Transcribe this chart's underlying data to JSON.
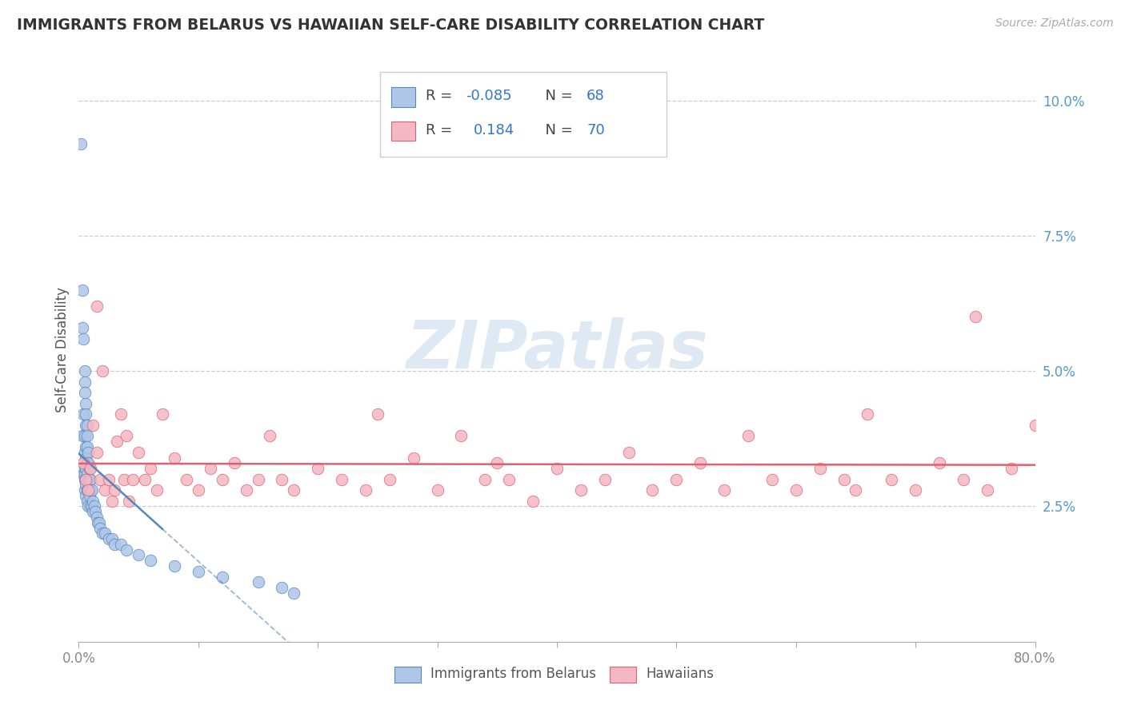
{
  "title": "IMMIGRANTS FROM BELARUS VS HAWAIIAN SELF-CARE DISABILITY CORRELATION CHART",
  "source": "Source: ZipAtlas.com",
  "ylabel": "Self-Care Disability",
  "ylabel_right_ticks": [
    "10.0%",
    "7.5%",
    "5.0%",
    "2.5%"
  ],
  "y_tick_values": [
    0.1,
    0.075,
    0.05,
    0.025
  ],
  "xlim": [
    0.0,
    0.8
  ],
  "ylim": [
    0.0,
    0.108
  ],
  "legend_label1": "Immigrants from Belarus",
  "legend_label2": "Hawaiians",
  "R1": -0.085,
  "N1": 68,
  "R2": 0.184,
  "N2": 70,
  "color_blue": "#aec6e8",
  "color_pink": "#f4b8c4",
  "color_line_blue": "#5588bb",
  "color_line_pink": "#e06070",
  "watermark_text": "ZIPatlas",
  "belarus_x": [
    0.002,
    0.003,
    0.003,
    0.003,
    0.004,
    0.004,
    0.004,
    0.005,
    0.005,
    0.005,
    0.005,
    0.005,
    0.005,
    0.005,
    0.005,
    0.005,
    0.006,
    0.006,
    0.006,
    0.006,
    0.006,
    0.006,
    0.006,
    0.006,
    0.006,
    0.007,
    0.007,
    0.007,
    0.007,
    0.007,
    0.007,
    0.007,
    0.008,
    0.008,
    0.008,
    0.008,
    0.008,
    0.009,
    0.009,
    0.009,
    0.01,
    0.01,
    0.01,
    0.011,
    0.011,
    0.012,
    0.012,
    0.013,
    0.014,
    0.015,
    0.016,
    0.017,
    0.018,
    0.02,
    0.022,
    0.025,
    0.028,
    0.03,
    0.035,
    0.04,
    0.05,
    0.06,
    0.08,
    0.1,
    0.12,
    0.15,
    0.17,
    0.18
  ],
  "belarus_y": [
    0.092,
    0.065,
    0.058,
    0.038,
    0.056,
    0.042,
    0.031,
    0.05,
    0.048,
    0.046,
    0.038,
    0.035,
    0.032,
    0.031,
    0.03,
    0.028,
    0.044,
    0.042,
    0.04,
    0.036,
    0.034,
    0.032,
    0.03,
    0.029,
    0.027,
    0.04,
    0.038,
    0.036,
    0.033,
    0.031,
    0.028,
    0.026,
    0.035,
    0.033,
    0.03,
    0.028,
    0.025,
    0.032,
    0.03,
    0.027,
    0.03,
    0.028,
    0.025,
    0.028,
    0.025,
    0.026,
    0.024,
    0.025,
    0.024,
    0.023,
    0.022,
    0.022,
    0.021,
    0.02,
    0.02,
    0.019,
    0.019,
    0.018,
    0.018,
    0.017,
    0.016,
    0.015,
    0.014,
    0.013,
    0.012,
    0.011,
    0.01,
    0.009
  ],
  "hawaii_x": [
    0.004,
    0.006,
    0.008,
    0.01,
    0.012,
    0.015,
    0.015,
    0.018,
    0.02,
    0.022,
    0.025,
    0.028,
    0.03,
    0.032,
    0.035,
    0.038,
    0.04,
    0.042,
    0.045,
    0.05,
    0.055,
    0.06,
    0.065,
    0.07,
    0.08,
    0.09,
    0.1,
    0.11,
    0.12,
    0.13,
    0.14,
    0.15,
    0.16,
    0.17,
    0.18,
    0.2,
    0.22,
    0.24,
    0.25,
    0.26,
    0.28,
    0.3,
    0.32,
    0.34,
    0.35,
    0.36,
    0.38,
    0.4,
    0.42,
    0.44,
    0.46,
    0.48,
    0.5,
    0.52,
    0.54,
    0.56,
    0.58,
    0.6,
    0.62,
    0.64,
    0.65,
    0.66,
    0.68,
    0.7,
    0.72,
    0.74,
    0.75,
    0.76,
    0.78,
    0.8
  ],
  "hawaii_y": [
    0.033,
    0.03,
    0.028,
    0.032,
    0.04,
    0.062,
    0.035,
    0.03,
    0.05,
    0.028,
    0.03,
    0.026,
    0.028,
    0.037,
    0.042,
    0.03,
    0.038,
    0.026,
    0.03,
    0.035,
    0.03,
    0.032,
    0.028,
    0.042,
    0.034,
    0.03,
    0.028,
    0.032,
    0.03,
    0.033,
    0.028,
    0.03,
    0.038,
    0.03,
    0.028,
    0.032,
    0.03,
    0.028,
    0.042,
    0.03,
    0.034,
    0.028,
    0.038,
    0.03,
    0.033,
    0.03,
    0.026,
    0.032,
    0.028,
    0.03,
    0.035,
    0.028,
    0.03,
    0.033,
    0.028,
    0.038,
    0.03,
    0.028,
    0.032,
    0.03,
    0.028,
    0.042,
    0.03,
    0.028,
    0.033,
    0.03,
    0.06,
    0.028,
    0.032,
    0.04
  ]
}
